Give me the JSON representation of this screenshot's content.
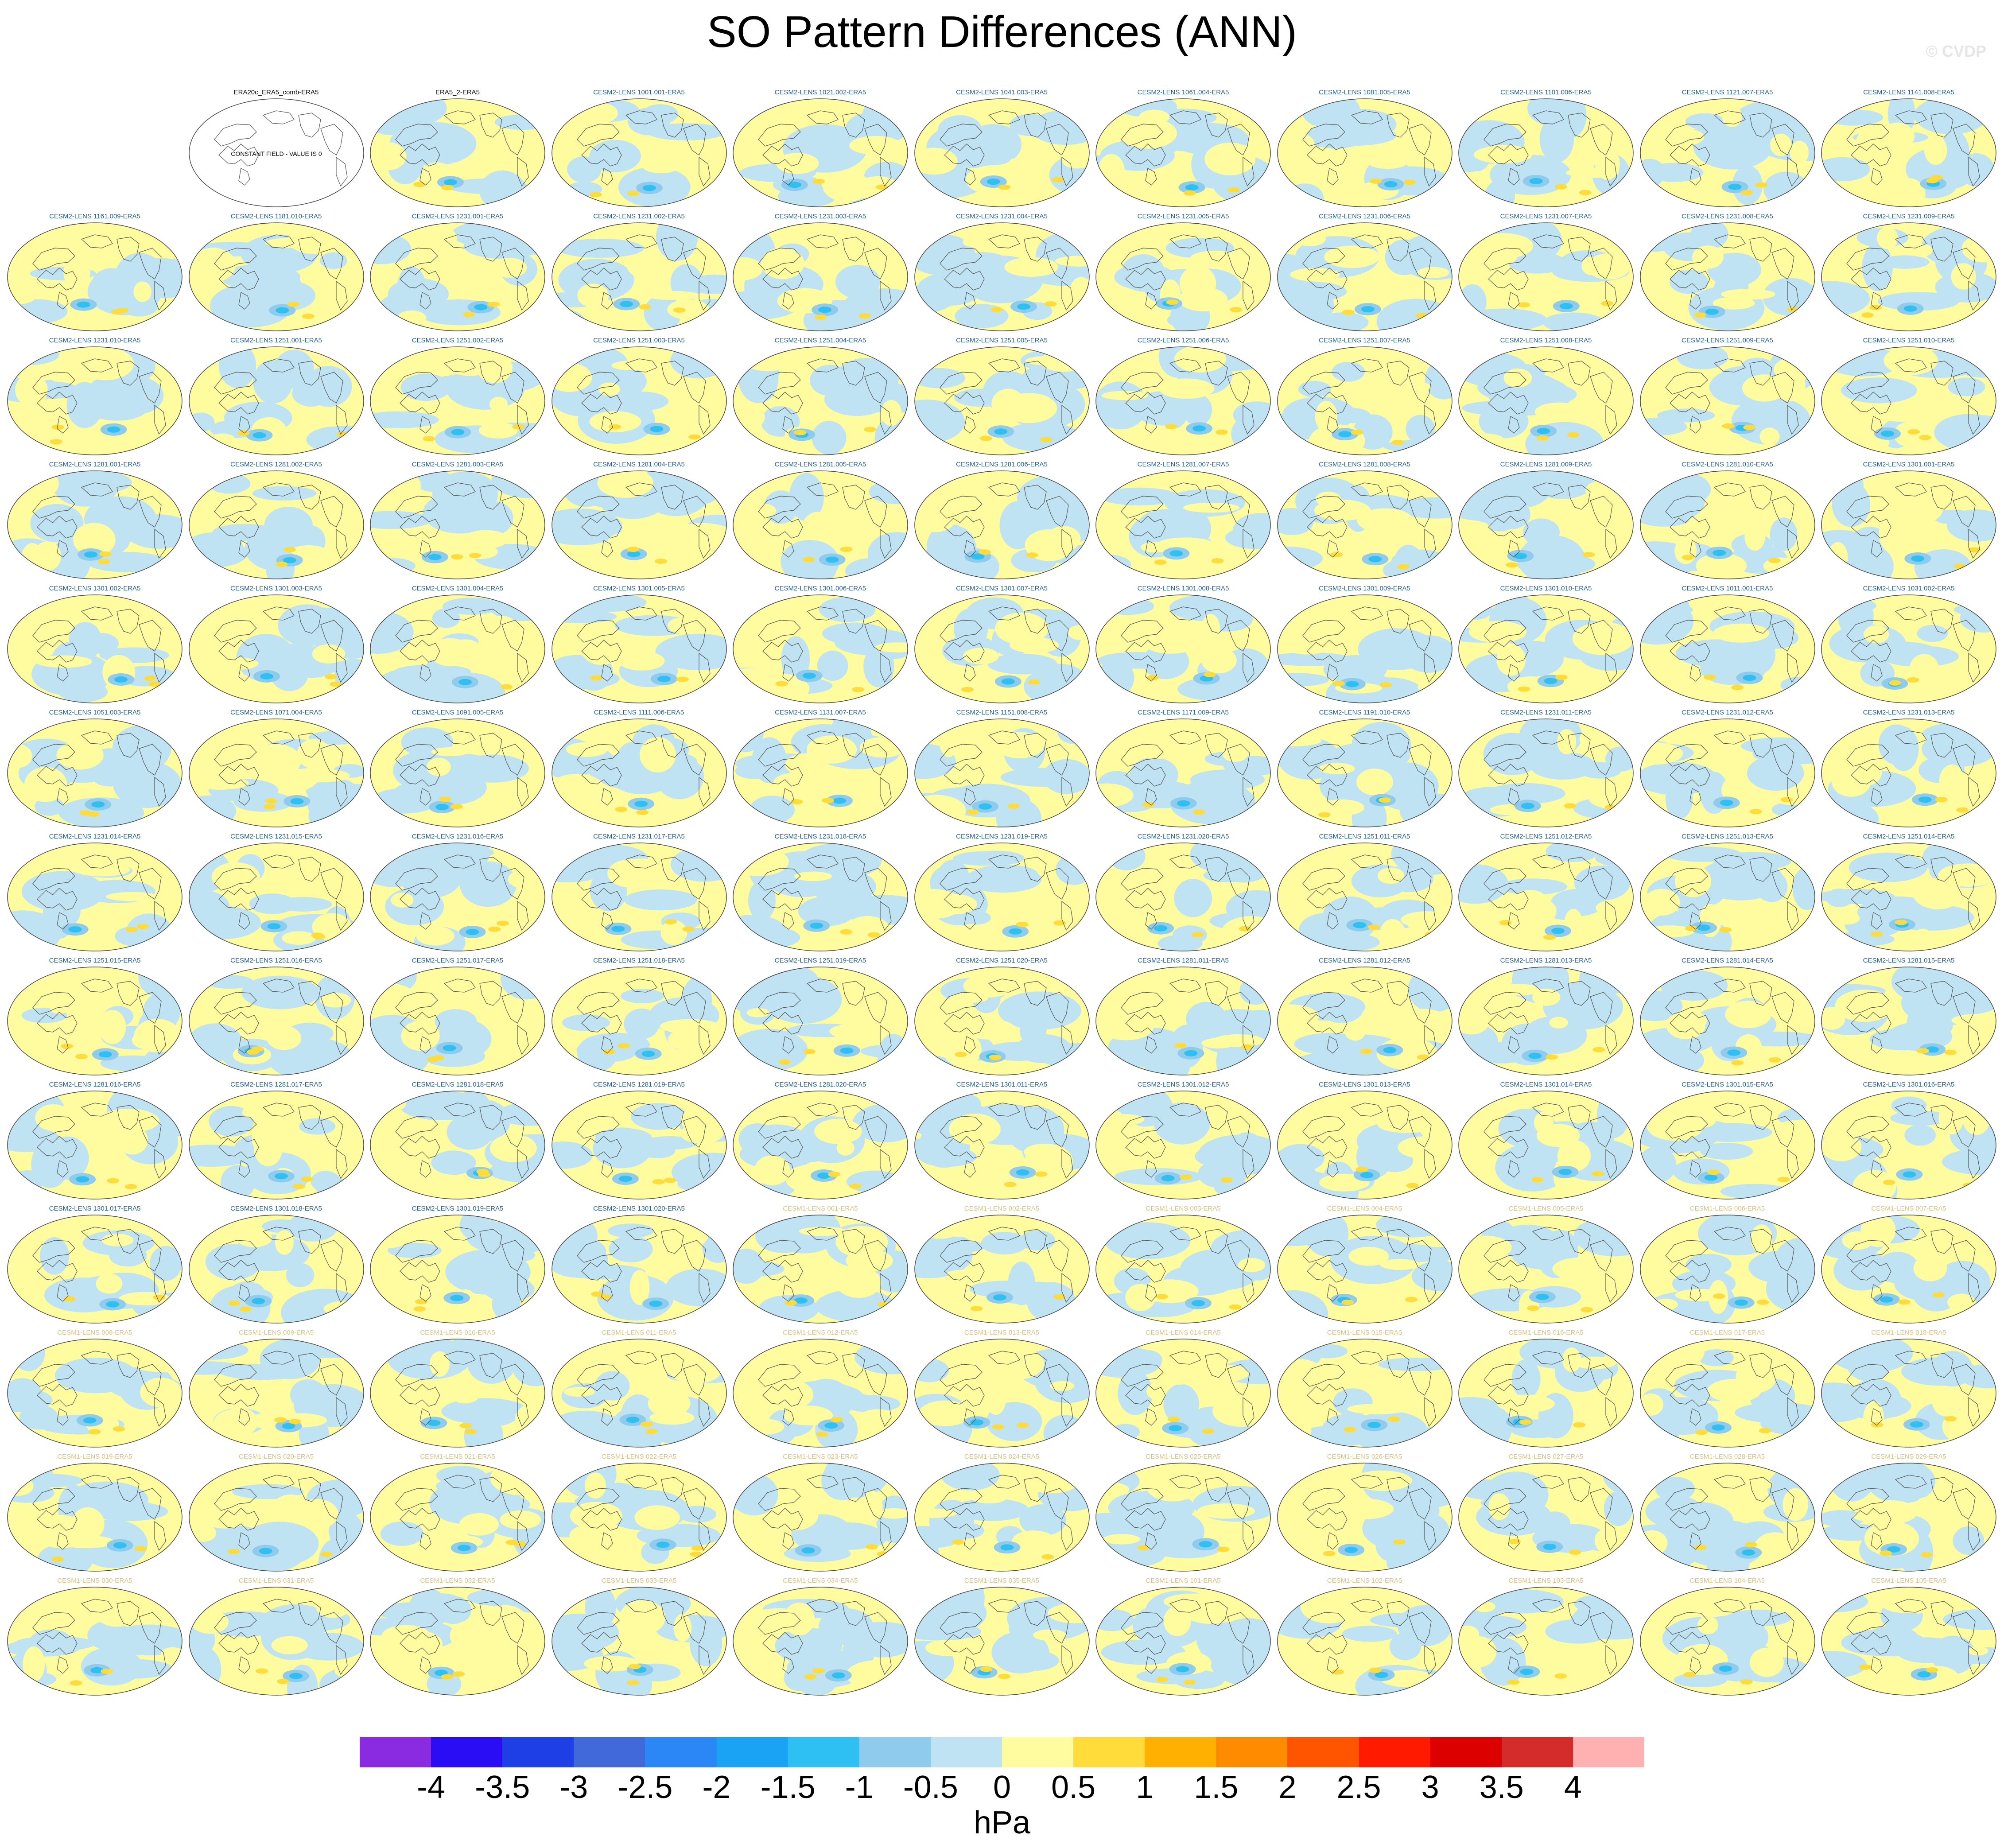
{
  "title": "SO Pattern Differences (ANN)",
  "watermark": "© CVDP",
  "constant_field_note": "CONSTANT FIELD - VALUE IS 0",
  "colors": {
    "land_outline": "#555555",
    "label_cesm2": "#1f5f8b",
    "label_cesm1": "#d9c27a",
    "label_reference": "#000000"
  },
  "panels": [
    "ERA20c_ERA5_comb-ERA5",
    "ERA5_2-ERA5",
    "CESM2-LENS 1001.001-ERA5",
    "CESM2-LENS 1021.002-ERA5",
    "CESM2-LENS 1041.003-ERA5",
    "CESM2-LENS 1061.004-ERA5",
    "CESM2-LENS 1081.005-ERA5",
    "CESM2-LENS 1101.006-ERA5",
    "CESM2-LENS 1121.007-ERA5",
    "CESM2-LENS 1141.008-ERA5",
    "CESM2-LENS 1161.009-ERA5",
    "CESM2-LENS 1181.010-ERA5",
    "CESM2-LENS 1231.001-ERA5",
    "CESM2-LENS 1231.002-ERA5",
    "CESM2-LENS 1231.003-ERA5",
    "CESM2-LENS 1231.004-ERA5",
    "CESM2-LENS 1231.005-ERA5",
    "CESM2-LENS 1231.006-ERA5",
    "CESM2-LENS 1231.007-ERA5",
    "CESM2-LENS 1231.008-ERA5",
    "CESM2-LENS 1231.009-ERA5",
    "CESM2-LENS 1231.010-ERA5",
    "CESM2-LENS 1251.001-ERA5",
    "CESM2-LENS 1251.002-ERA5",
    "CESM2-LENS 1251.003-ERA5",
    "CESM2-LENS 1251.004-ERA5",
    "CESM2-LENS 1251.005-ERA5",
    "CESM2-LENS 1251.006-ERA5",
    "CESM2-LENS 1251.007-ERA5",
    "CESM2-LENS 1251.008-ERA5",
    "CESM2-LENS 1251.009-ERA5",
    "CESM2-LENS 1251.010-ERA5",
    "CESM2-LENS 1281.001-ERA5",
    "CESM2-LENS 1281.002-ERA5",
    "CESM2-LENS 1281.003-ERA5",
    "CESM2-LENS 1281.004-ERA5",
    "CESM2-LENS 1281.005-ERA5",
    "CESM2-LENS 1281.006-ERA5",
    "CESM2-LENS 1281.007-ERA5",
    "CESM2-LENS 1281.008-ERA5",
    "CESM2-LENS 1281.009-ERA5",
    "CESM2-LENS 1281.010-ERA5",
    "CESM2-LENS 1301.001-ERA5",
    "CESM2-LENS 1301.002-ERA5",
    "CESM2-LENS 1301.003-ERA5",
    "CESM2-LENS 1301.004-ERA5",
    "CESM2-LENS 1301.005-ERA5",
    "CESM2-LENS 1301.006-ERA5",
    "CESM2-LENS 1301.007-ERA5",
    "CESM2-LENS 1301.008-ERA5",
    "CESM2-LENS 1301.009-ERA5",
    "CESM2-LENS 1301.010-ERA5",
    "CESM2-LENS 1011.001-ERA5",
    "CESM2-LENS 1031.002-ERA5",
    "CESM2-LENS 1051.003-ERA5",
    "CESM2-LENS 1071.004-ERA5",
    "CESM2-LENS 1091.005-ERA5",
    "CESM2-LENS 1111.006-ERA5",
    "CESM2-LENS 1131.007-ERA5",
    "CESM2-LENS 1151.008-ERA5",
    "CESM2-LENS 1171.009-ERA5",
    "CESM2-LENS 1191.010-ERA5",
    "CESM2-LENS 1231.011-ERA5",
    "CESM2-LENS 1231.012-ERA5",
    "CESM2-LENS 1231.013-ERA5",
    "CESM2-LENS 1231.014-ERA5",
    "CESM2-LENS 1231.015-ERA5",
    "CESM2-LENS 1231.016-ERA5",
    "CESM2-LENS 1231.017-ERA5",
    "CESM2-LENS 1231.018-ERA5",
    "CESM2-LENS 1231.019-ERA5",
    "CESM2-LENS 1231.020-ERA5",
    "CESM2-LENS 1251.011-ERA5",
    "CESM2-LENS 1251.012-ERA5",
    "CESM2-LENS 1251.013-ERA5",
    "CESM2-LENS 1251.014-ERA5",
    "CESM2-LENS 1251.015-ERA5",
    "CESM2-LENS 1251.016-ERA5",
    "CESM2-LENS 1251.017-ERA5",
    "CESM2-LENS 1251.018-ERA5",
    "CESM2-LENS 1251.019-ERA5",
    "CESM2-LENS 1251.020-ERA5",
    "CESM2-LENS 1281.011-ERA5",
    "CESM2-LENS 1281.012-ERA5",
    "CESM2-LENS 1281.013-ERA5",
    "CESM2-LENS 1281.014-ERA5",
    "CESM2-LENS 1281.015-ERA5",
    "CESM2-LENS 1281.016-ERA5",
    "CESM2-LENS 1281.017-ERA5",
    "CESM2-LENS 1281.018-ERA5",
    "CESM2-LENS 1281.019-ERA5",
    "CESM2-LENS 1281.020-ERA5",
    "CESM2-LENS 1301.011-ERA5",
    "CESM2-LENS 1301.012-ERA5",
    "CESM2-LENS 1301.013-ERA5",
    "CESM2-LENS 1301.014-ERA5",
    "CESM2-LENS 1301.015-ERA5",
    "CESM2-LENS 1301.016-ERA5",
    "CESM2-LENS 1301.017-ERA5",
    "CESM2-LENS 1301.018-ERA5",
    "CESM2-LENS 1301.019-ERA5",
    "CESM2-LENS 1301.020-ERA5",
    "CESM1-LENS 001-ERA5",
    "CESM1-LENS 002-ERA5",
    "CESM1-LENS 003-ERA5",
    "CESM1-LENS 004-ERA5",
    "CESM1-LENS 005-ERA5",
    "CESM1-LENS 006-ERA5",
    "CESM1-LENS 007-ERA5",
    "CESM1-LENS 008-ERA5",
    "CESM1-LENS 009-ERA5",
    "CESM1-LENS 010-ERA5",
    "CESM1-LENS 011-ERA5",
    "CESM1-LENS 012-ERA5",
    "CESM1-LENS 013-ERA5",
    "CESM1-LENS 014-ERA5",
    "CESM1-LENS 015-ERA5",
    "CESM1-LENS 016-ERA5",
    "CESM1-LENS 017-ERA5",
    "CESM1-LENS 018-ERA5",
    "CESM1-LENS 019-ERA5",
    "CESM1-LENS 020-ERA5",
    "CESM1-LENS 021-ERA5",
    "CESM1-LENS 022-ERA5",
    "CESM1-LENS 023-ERA5",
    "CESM1-LENS 024-ERA5",
    "CESM1-LENS 025-ERA5",
    "CESM1-LENS 026-ERA5",
    "CESM1-LENS 027-ERA5",
    "CESM1-LENS 028-ERA5",
    "CESM1-LENS 029-ERA5",
    "CESM1-LENS 030-ERA5",
    "CESM1-LENS 031-ERA5",
    "CESM1-LENS 032-ERA5",
    "CESM1-LENS 033-ERA5",
    "CESM1-LENS 034-ERA5",
    "CESM1-LENS 035-ERA5",
    "CESM1-LENS 101-ERA5",
    "CESM1-LENS 102-ERA5",
    "CESM1-LENS 103-ERA5",
    "CESM1-LENS 104-ERA5",
    "CESM1-LENS 105-ERA5"
  ],
  "colorbar": {
    "unit": "hPa",
    "tick_labels": [
      "-4",
      "-3.5",
      "-3",
      "-2.5",
      "-2",
      "-1.5",
      "-1",
      "-0.5",
      "0",
      "0.5",
      "1",
      "1.5",
      "2",
      "2.5",
      "3",
      "3.5",
      "4"
    ],
    "colors": [
      "#8a2be2",
      "#2a0cf5",
      "#1f3fe6",
      "#4169d9",
      "#2b87f5",
      "#1aa3f5",
      "#2ec0f2",
      "#8ecbed",
      "#bfe3f3",
      "#fffca0",
      "#ffdc3a",
      "#ffb000",
      "#ff8c00",
      "#ff5500",
      "#ff1a00",
      "#dd0000",
      "#d42b2b",
      "#ffb0b0"
    ]
  }
}
